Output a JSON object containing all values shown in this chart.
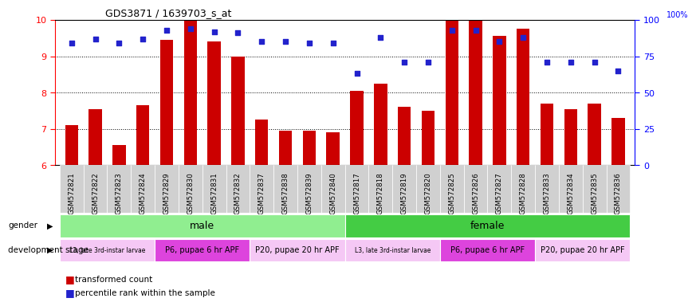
{
  "title": "GDS3871 / 1639703_s_at",
  "samples": [
    "GSM572821",
    "GSM572822",
    "GSM572823",
    "GSM572824",
    "GSM572829",
    "GSM572830",
    "GSM572831",
    "GSM572832",
    "GSM572837",
    "GSM572838",
    "GSM572839",
    "GSM572840",
    "GSM572817",
    "GSM572818",
    "GSM572819",
    "GSM572820",
    "GSM572825",
    "GSM572826",
    "GSM572827",
    "GSM572828",
    "GSM572833",
    "GSM572834",
    "GSM572835",
    "GSM572836"
  ],
  "bar_heights": [
    7.1,
    7.55,
    6.55,
    7.65,
    9.45,
    10.0,
    9.4,
    9.0,
    7.25,
    6.95,
    6.95,
    6.9,
    8.05,
    8.25,
    7.6,
    7.5,
    10.0,
    10.0,
    9.55,
    9.75,
    7.7,
    7.55,
    7.7,
    7.3
  ],
  "percentile_values": [
    84,
    87,
    84,
    87,
    93,
    94,
    92,
    91,
    85,
    85,
    84,
    84,
    63,
    88,
    71,
    71,
    93,
    93,
    85,
    88,
    71,
    71,
    71,
    65
  ],
  "bar_color": "#cc0000",
  "dot_color": "#2222cc",
  "ylim_left": [
    6,
    10
  ],
  "ylim_right": [
    0,
    100
  ],
  "yticks_left": [
    6,
    7,
    8,
    9,
    10
  ],
  "yticks_right": [
    0,
    25,
    50,
    75,
    100
  ],
  "gender_groups": [
    {
      "label": "male",
      "start": 0,
      "end": 12,
      "color": "#90ee90"
    },
    {
      "label": "female",
      "start": 12,
      "end": 24,
      "color": "#44cc44"
    }
  ],
  "dev_stage_groups": [
    {
      "label": "L3, late 3rd-instar larvae",
      "start": 0,
      "end": 4,
      "color": "#f5c8f5"
    },
    {
      "label": "P6, pupae 6 hr APF",
      "start": 4,
      "end": 8,
      "color": "#dd44dd"
    },
    {
      "label": "P20, pupae 20 hr APF",
      "start": 8,
      "end": 12,
      "color": "#f5c8f5"
    },
    {
      "label": "L3, late 3rd-instar larvae",
      "start": 12,
      "end": 16,
      "color": "#f5c8f5"
    },
    {
      "label": "P6, pupae 6 hr APF",
      "start": 16,
      "end": 20,
      "color": "#dd44dd"
    },
    {
      "label": "P20, pupae 20 hr APF",
      "start": 20,
      "end": 24,
      "color": "#f5c8f5"
    }
  ],
  "legend_bar_label": "transformed count",
  "legend_dot_label": "percentile rank within the sample",
  "background_color": "#ffffff",
  "tick_label_bg": "#d0d0d0",
  "grid_lines": [
    7,
    8,
    9
  ],
  "bar_width": 0.55
}
